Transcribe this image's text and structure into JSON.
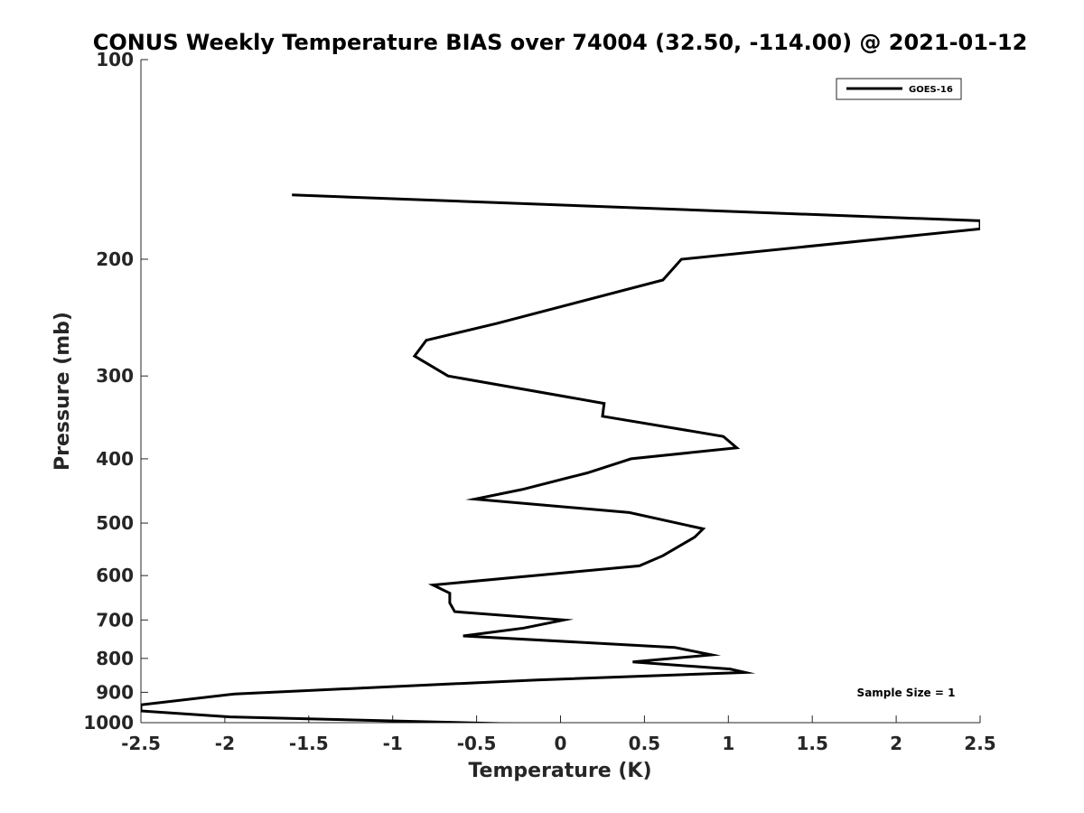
{
  "chart_data": {
    "type": "line",
    "title": "CONUS Weekly Temperature BIAS over 74004 (32.50, -114.00) @ 2021-01-12",
    "xlabel": "Temperature (K)",
    "ylabel": "Pressure (mb)",
    "xlim": [
      -2.5,
      2.5
    ],
    "ylim": [
      100,
      1000
    ],
    "y_scale": "log",
    "y_reversed": true,
    "x_ticks": [
      -2.5,
      -2,
      -1.5,
      -1,
      -0.5,
      0,
      0.5,
      1,
      1.5,
      2,
      2.5
    ],
    "x_tick_labels": [
      "-2.5",
      "-2",
      "-1.5",
      "-1",
      "-0.5",
      "0",
      "0.5",
      "1",
      "1.5",
      "2",
      "2.5"
    ],
    "y_ticks": [
      100,
      200,
      300,
      400,
      500,
      600,
      700,
      800,
      900,
      1000
    ],
    "y_tick_labels": [
      "100",
      "200",
      "300",
      "400",
      "500",
      "600",
      "700",
      "800",
      "900",
      "1000"
    ],
    "grid": false,
    "legend_position": "top-right",
    "series": [
      {
        "name": "GOES-16",
        "color": "#000000",
        "x": [
          -1.6,
          2.5,
          2.5,
          0.72,
          0.61,
          -0.38,
          -0.8,
          -0.87,
          -0.67,
          0.26,
          0.25,
          0.97,
          1.05,
          0.42,
          0.16,
          -0.23,
          -0.51,
          0.41,
          0.85,
          0.8,
          0.61,
          0.47,
          -0.76,
          -0.66,
          -0.66,
          -0.63,
          0.02,
          -0.22,
          -0.58,
          0.68,
          0.9,
          0.43,
          1.01,
          1.1,
          -0.14,
          -1.94,
          -2.5,
          -2.5,
          -1.97,
          -0.23
        ],
        "y": [
          160,
          175,
          180,
          200,
          215,
          250,
          265,
          280,
          300,
          330,
          345,
          370,
          385,
          400,
          420,
          445,
          460,
          482,
          510,
          525,
          560,
          580,
          620,
          638,
          660,
          680,
          700,
          720,
          740,
          770,
          790,
          810,
          830,
          840,
          862,
          905,
          940,
          960,
          980,
          1005
        ]
      }
    ],
    "annotation": "Sample Size = 1"
  }
}
